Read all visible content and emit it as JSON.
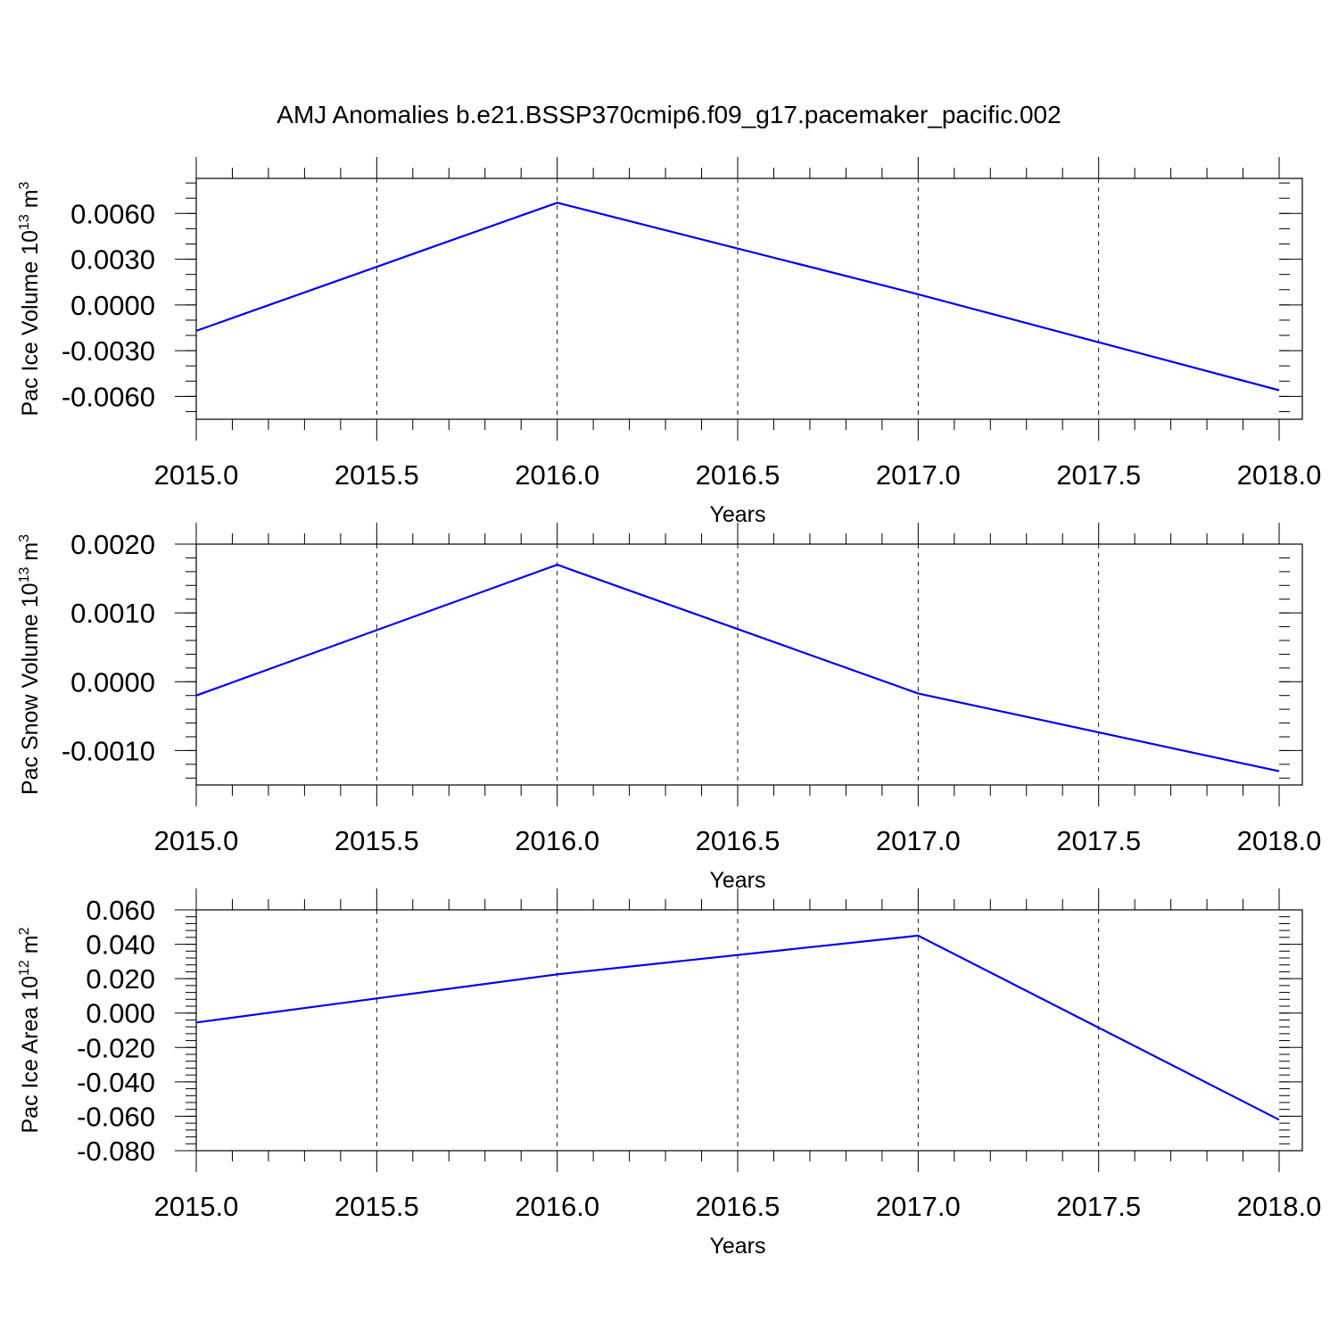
{
  "title": "AMJ Anomalies b.e21.BSSP370cmip6.f09_g17.pacemaker_pacific.002",
  "colors": {
    "line": "#0000ee",
    "axis": "#000000",
    "background": "#ffffff"
  },
  "chart_data": [
    {
      "type": "line",
      "xlabel": "Years",
      "ylabel": {
        "main": "Pac Ice Volume 10",
        "exp": "13",
        "unit": " m",
        "unit_exp": "3"
      },
      "xlim": [
        2015.0,
        2018.0
      ],
      "ylim": [
        -0.0075,
        0.0083
      ],
      "x_ticks": [
        "2015.0",
        "2015.5",
        "2016.0",
        "2016.5",
        "2017.0",
        "2017.5",
        "2018.0"
      ],
      "y_ticks": [
        {
          "value": 0.006,
          "label": "0.0060"
        },
        {
          "value": 0.003,
          "label": "0.0030"
        },
        {
          "value": 0.0,
          "label": "0.0000"
        },
        {
          "value": -0.003,
          "label": "-0.0030"
        },
        {
          "value": -0.006,
          "label": "-0.0060"
        }
      ],
      "y_minor_step": 0.001,
      "grid": "dashed vertical",
      "x": [
        2015,
        2016,
        2017,
        2018
      ],
      "values": [
        -0.0017,
        0.0067,
        0.0007,
        -0.0056
      ]
    },
    {
      "type": "line",
      "xlabel": "Years",
      "ylabel": {
        "main": "Pac Snow Volume 10",
        "exp": "13",
        "unit": " m",
        "unit_exp": "3"
      },
      "xlim": [
        2015.0,
        2018.0
      ],
      "ylim": [
        -0.0015,
        0.002
      ],
      "x_ticks": [
        "2015.0",
        "2015.5",
        "2016.0",
        "2016.5",
        "2017.0",
        "2017.5",
        "2018.0"
      ],
      "y_ticks": [
        {
          "value": 0.002,
          "label": "0.0020"
        },
        {
          "value": 0.001,
          "label": "0.0010"
        },
        {
          "value": 0.0,
          "label": "0.0000"
        },
        {
          "value": -0.001,
          "label": "-0.0010"
        }
      ],
      "y_minor_step": 0.0002,
      "grid": "dashed vertical",
      "x": [
        2015,
        2016,
        2017,
        2018
      ],
      "values": [
        -0.0002,
        0.0017,
        -0.00017,
        -0.0013
      ]
    },
    {
      "type": "line",
      "xlabel": "Years",
      "ylabel": {
        "main": "Pac Ice Area 10",
        "exp": "12",
        "unit": " m",
        "unit_exp": "2"
      },
      "xlim": [
        2015.0,
        2018.0
      ],
      "ylim": [
        -0.08,
        0.06
      ],
      "x_ticks": [
        "2015.0",
        "2015.5",
        "2016.0",
        "2016.5",
        "2017.0",
        "2017.5",
        "2018.0"
      ],
      "y_ticks": [
        {
          "value": 0.06,
          "label": "0.060"
        },
        {
          "value": 0.04,
          "label": "0.040"
        },
        {
          "value": 0.02,
          "label": "0.020"
        },
        {
          "value": 0.0,
          "label": "0.000"
        },
        {
          "value": -0.02,
          "label": "-0.020"
        },
        {
          "value": -0.04,
          "label": "-0.040"
        },
        {
          "value": -0.06,
          "label": "-0.060"
        },
        {
          "value": -0.08,
          "label": "-0.080"
        }
      ],
      "y_minor_step": 0.004,
      "grid": "dashed vertical",
      "x": [
        2015,
        2016,
        2017,
        2018
      ],
      "values": [
        -0.0055,
        0.0225,
        0.045,
        -0.062
      ]
    }
  ]
}
